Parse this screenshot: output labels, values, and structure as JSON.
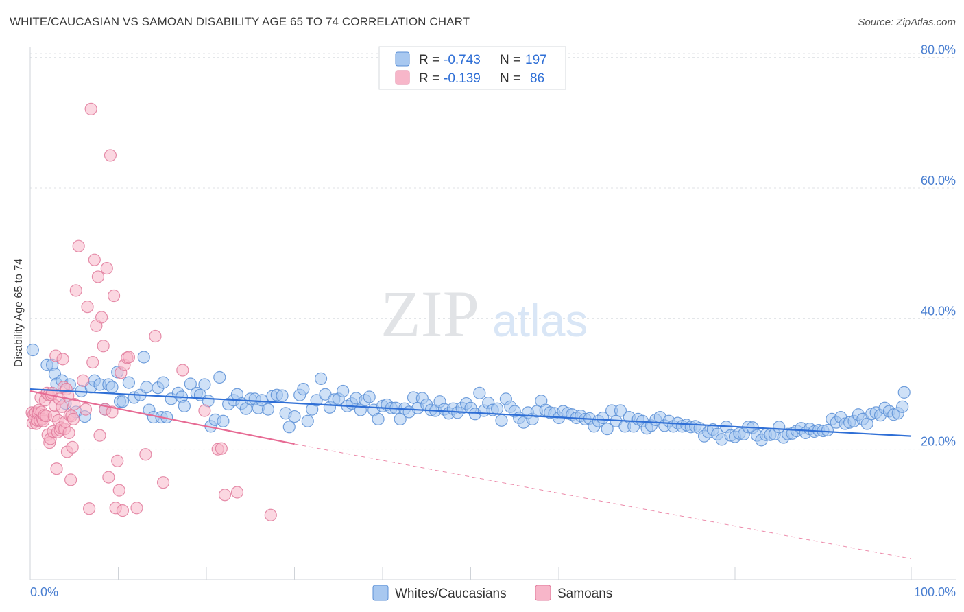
{
  "title": "WHITE/CAUCASIAN VS SAMOAN DISABILITY AGE 65 TO 74 CORRELATION CHART",
  "source": "Source: ZipAtlas.com",
  "watermark": {
    "zip": "ZIP",
    "atlas": "atlas"
  },
  "legend": {
    "rows": [
      {
        "r_label": "R =",
        "r_value": "-0.743",
        "n_label": "N =",
        "n_value": "197",
        "color": "#a8c8f0",
        "stroke": "#5b8fd6"
      },
      {
        "r_label": "R =",
        "r_value": "-0.139",
        "n_label": "N =",
        "n_value": "86",
        "color": "#f7b6c9",
        "stroke": "#e07a9b"
      }
    ]
  },
  "chart_data": {
    "type": "scatter",
    "title": "WHITE/CAUCASIAN VS SAMOAN DISABILITY AGE 65 TO 74 CORRELATION CHART",
    "xlabel": "",
    "ylabel": "Disability Age 65 to 74",
    "xlim": [
      0,
      100
    ],
    "ylim": [
      0,
      86
    ],
    "x_tick_labels": [
      "0.0%",
      "100.0%"
    ],
    "y_ticks": [
      20,
      40,
      60,
      80
    ],
    "y_tick_labels": [
      "20.0%",
      "40.0%",
      "60.0%",
      "80.0%"
    ],
    "grid": true,
    "legend_position": "top-center",
    "series": [
      {
        "name": "Whites/Caucasians",
        "color": "#a8c8f0",
        "stroke": "#5b8fd6",
        "trend": {
          "x": [
            0,
            100
          ],
          "y": [
            29.2,
            22.0
          ],
          "color": "#2f6fd6"
        },
        "points": [
          [
            0.3,
            35.2
          ],
          [
            1.9,
            32.9
          ],
          [
            2.5,
            32.9
          ],
          [
            2.8,
            31.5
          ],
          [
            3.0,
            30.0
          ],
          [
            3.6,
            30.5
          ],
          [
            4.0,
            27.0
          ],
          [
            4.5,
            29.9
          ],
          [
            5.2,
            25.7
          ],
          [
            5.8,
            28.9
          ],
          [
            6.2,
            25.0
          ],
          [
            6.9,
            29.5
          ],
          [
            7.3,
            30.5
          ],
          [
            7.9,
            29.9
          ],
          [
            8.5,
            26.1
          ],
          [
            8.9,
            29.9
          ],
          [
            9.3,
            29.5
          ],
          [
            9.9,
            31.8
          ],
          [
            10.2,
            27.3
          ],
          [
            10.5,
            27.3
          ],
          [
            11.2,
            30.2
          ],
          [
            11.8,
            27.9
          ],
          [
            12.5,
            28.3
          ],
          [
            12.9,
            34.1
          ],
          [
            13.2,
            29.5
          ],
          [
            13.5,
            26.0
          ],
          [
            14.0,
            24.9
          ],
          [
            14.5,
            29.4
          ],
          [
            14.9,
            24.9
          ],
          [
            15.1,
            30.2
          ],
          [
            15.5,
            24.9
          ],
          [
            16.0,
            27.7
          ],
          [
            16.8,
            28.6
          ],
          [
            17.2,
            28.0
          ],
          [
            17.5,
            26.6
          ],
          [
            18.2,
            30.0
          ],
          [
            18.9,
            28.6
          ],
          [
            19.3,
            28.3
          ],
          [
            19.8,
            29.9
          ],
          [
            20.2,
            27.4
          ],
          [
            20.5,
            23.5
          ],
          [
            21.0,
            24.5
          ],
          [
            21.5,
            31.0
          ],
          [
            21.9,
            24.3
          ],
          [
            22.5,
            26.9
          ],
          [
            23.1,
            27.5
          ],
          [
            23.5,
            28.4
          ],
          [
            24.0,
            27.0
          ],
          [
            24.5,
            26.2
          ],
          [
            25.0,
            27.7
          ],
          [
            25.5,
            27.7
          ],
          [
            25.9,
            26.3
          ],
          [
            26.3,
            27.5
          ],
          [
            27.0,
            26.1
          ],
          [
            27.5,
            28.1
          ],
          [
            28.0,
            28.3
          ],
          [
            28.6,
            28.2
          ],
          [
            29.0,
            25.5
          ],
          [
            29.4,
            23.4
          ],
          [
            30.0,
            25.0
          ],
          [
            30.6,
            28.3
          ],
          [
            31.0,
            29.2
          ],
          [
            31.5,
            24.3
          ],
          [
            32.0,
            26.1
          ],
          [
            32.5,
            27.5
          ],
          [
            33.0,
            30.8
          ],
          [
            33.5,
            28.4
          ],
          [
            34.0,
            26.4
          ],
          [
            34.5,
            27.6
          ],
          [
            35.0,
            27.7
          ],
          [
            35.5,
            28.9
          ],
          [
            36.0,
            26.6
          ],
          [
            36.5,
            27.0
          ],
          [
            37.0,
            27.8
          ],
          [
            37.5,
            26.0
          ],
          [
            38.0,
            27.5
          ],
          [
            38.5,
            28.0
          ],
          [
            39.0,
            26.0
          ],
          [
            39.5,
            24.6
          ],
          [
            40.0,
            26.6
          ],
          [
            40.5,
            26.8
          ],
          [
            41.0,
            26.3
          ],
          [
            41.5,
            26.3
          ],
          [
            42.0,
            24.6
          ],
          [
            42.5,
            26.2
          ],
          [
            43.0,
            25.7
          ],
          [
            43.5,
            27.9
          ],
          [
            44.0,
            26.3
          ],
          [
            44.5,
            27.8
          ],
          [
            45.0,
            26.8
          ],
          [
            45.5,
            26.0
          ],
          [
            46.0,
            25.9
          ],
          [
            46.5,
            27.3
          ],
          [
            47.0,
            26.1
          ],
          [
            47.5,
            25.5
          ],
          [
            48.0,
            26.2
          ],
          [
            48.5,
            25.6
          ],
          [
            49.0,
            26.3
          ],
          [
            49.5,
            27.0
          ],
          [
            50.0,
            26.3
          ],
          [
            50.5,
            25.4
          ],
          [
            51.0,
            28.6
          ],
          [
            51.5,
            25.9
          ],
          [
            52.0,
            27.1
          ],
          [
            52.5,
            26.0
          ],
          [
            53.0,
            26.2
          ],
          [
            53.5,
            24.4
          ],
          [
            54.0,
            27.7
          ],
          [
            54.5,
            26.5
          ],
          [
            55.0,
            25.8
          ],
          [
            55.5,
            24.8
          ],
          [
            56.0,
            24.1
          ],
          [
            56.5,
            25.6
          ],
          [
            57.0,
            24.6
          ],
          [
            57.5,
            25.8
          ],
          [
            58.0,
            27.4
          ],
          [
            58.5,
            26.0
          ],
          [
            59.0,
            25.6
          ],
          [
            59.5,
            25.5
          ],
          [
            60.0,
            24.8
          ],
          [
            60.5,
            25.8
          ],
          [
            61.0,
            25.5
          ],
          [
            61.5,
            25.3
          ],
          [
            62.0,
            24.8
          ],
          [
            62.5,
            25.1
          ],
          [
            63.0,
            24.6
          ],
          [
            63.5,
            24.7
          ],
          [
            64.0,
            23.5
          ],
          [
            64.5,
            24.3
          ],
          [
            65.0,
            24.8
          ],
          [
            65.5,
            23.1
          ],
          [
            66.0,
            25.9
          ],
          [
            66.5,
            24.3
          ],
          [
            67.0,
            25.9
          ],
          [
            67.5,
            23.5
          ],
          [
            68.0,
            24.9
          ],
          [
            68.5,
            23.5
          ],
          [
            69.0,
            24.6
          ],
          [
            69.5,
            24.3
          ],
          [
            70.0,
            23.2
          ],
          [
            70.5,
            23.6
          ],
          [
            71.0,
            24.5
          ],
          [
            71.5,
            24.9
          ],
          [
            72.0,
            23.6
          ],
          [
            72.5,
            24.3
          ],
          [
            73.0,
            23.5
          ],
          [
            73.5,
            24.0
          ],
          [
            74.0,
            23.5
          ],
          [
            74.5,
            23.7
          ],
          [
            75.0,
            23.4
          ],
          [
            75.5,
            23.5
          ],
          [
            76.0,
            23.2
          ],
          [
            76.5,
            22.0
          ],
          [
            77.0,
            22.6
          ],
          [
            77.5,
            23.0
          ],
          [
            78.0,
            22.3
          ],
          [
            78.5,
            21.5
          ],
          [
            79.0,
            23.4
          ],
          [
            79.5,
            22.1
          ],
          [
            80.0,
            21.9
          ],
          [
            80.5,
            22.4
          ],
          [
            81.0,
            22.3
          ],
          [
            81.5,
            23.4
          ],
          [
            82.0,
            23.3
          ],
          [
            82.5,
            22.1
          ],
          [
            83.0,
            21.4
          ],
          [
            83.5,
            22.2
          ],
          [
            84.0,
            22.2
          ],
          [
            84.5,
            22.3
          ],
          [
            85.0,
            23.4
          ],
          [
            85.5,
            21.8
          ],
          [
            86.0,
            22.3
          ],
          [
            86.5,
            22.4
          ],
          [
            87.0,
            22.8
          ],
          [
            87.5,
            23.2
          ],
          [
            88.0,
            22.5
          ],
          [
            88.5,
            23.1
          ],
          [
            89.0,
            22.7
          ],
          [
            89.5,
            22.9
          ],
          [
            90.0,
            22.8
          ],
          [
            90.5,
            22.9
          ],
          [
            91.0,
            24.6
          ],
          [
            91.5,
            24.1
          ],
          [
            92.0,
            24.9
          ],
          [
            92.5,
            23.9
          ],
          [
            93.0,
            24.1
          ],
          [
            93.5,
            24.3
          ],
          [
            94.0,
            25.3
          ],
          [
            94.5,
            24.6
          ],
          [
            95.0,
            23.9
          ],
          [
            95.5,
            25.4
          ],
          [
            96.0,
            25.6
          ],
          [
            96.5,
            25.2
          ],
          [
            97.0,
            26.3
          ],
          [
            97.5,
            25.8
          ],
          [
            98.0,
            25.3
          ],
          [
            98.5,
            25.5
          ],
          [
            99.0,
            26.5
          ],
          [
            99.2,
            28.7
          ]
        ]
      },
      {
        "name": "Samoans",
        "color": "#f7b6c9",
        "stroke": "#e07a9b",
        "trend": {
          "x": [
            0,
            30
          ],
          "y": [
            28.9,
            20.8
          ],
          "color": "#e76b94",
          "dashed_to": [
            100,
            3.2
          ]
        },
        "points": [
          [
            0.2,
            25.6
          ],
          [
            0.3,
            24.0
          ],
          [
            0.4,
            25.3
          ],
          [
            0.5,
            24.6
          ],
          [
            0.6,
            25.6
          ],
          [
            0.7,
            23.9
          ],
          [
            0.8,
            24.4
          ],
          [
            0.9,
            25.5
          ],
          [
            1.0,
            26.0
          ],
          [
            1.1,
            24.4
          ],
          [
            1.2,
            27.9
          ],
          [
            1.3,
            25.7
          ],
          [
            1.4,
            24.6
          ],
          [
            1.5,
            24.3
          ],
          [
            1.6,
            25.2
          ],
          [
            1.7,
            27.5
          ],
          [
            1.8,
            25.1
          ],
          [
            1.9,
            28.6
          ],
          [
            2.0,
            22.2
          ],
          [
            2.1,
            28.3
          ],
          [
            2.2,
            21.0
          ],
          [
            2.3,
            21.6
          ],
          [
            2.4,
            28.3
          ],
          [
            2.5,
            28.6
          ],
          [
            2.6,
            22.7
          ],
          [
            2.7,
            25.1
          ],
          [
            2.8,
            26.7
          ],
          [
            2.9,
            34.3
          ],
          [
            3.0,
            17.0
          ],
          [
            3.1,
            22.6
          ],
          [
            3.2,
            24.4
          ],
          [
            3.3,
            27.7
          ],
          [
            3.4,
            22.9
          ],
          [
            3.5,
            23.3
          ],
          [
            3.6,
            26.5
          ],
          [
            3.7,
            33.8
          ],
          [
            3.8,
            29.5
          ],
          [
            3.9,
            23.1
          ],
          [
            4.0,
            24.2
          ],
          [
            4.1,
            29.2
          ],
          [
            4.2,
            19.6
          ],
          [
            4.3,
            28.2
          ],
          [
            4.4,
            22.5
          ],
          [
            4.5,
            25.2
          ],
          [
            4.6,
            15.3
          ],
          [
            4.7,
            25.1
          ],
          [
            4.8,
            20.3
          ],
          [
            4.9,
            24.6
          ],
          [
            5.0,
            26.9
          ],
          [
            5.2,
            44.3
          ],
          [
            5.5,
            51.1
          ],
          [
            6.0,
            30.5
          ],
          [
            6.3,
            26.1
          ],
          [
            6.5,
            41.8
          ],
          [
            6.7,
            10.9
          ],
          [
            6.9,
            72.1
          ],
          [
            7.1,
            33.3
          ],
          [
            7.3,
            49.0
          ],
          [
            7.5,
            38.9
          ],
          [
            7.7,
            46.4
          ],
          [
            7.9,
            22.1
          ],
          [
            8.1,
            40.2
          ],
          [
            8.3,
            35.8
          ],
          [
            8.5,
            26.1
          ],
          [
            8.7,
            47.7
          ],
          [
            8.9,
            15.7
          ],
          [
            9.1,
            65.0
          ],
          [
            9.3,
            25.7
          ],
          [
            9.5,
            43.5
          ],
          [
            9.7,
            11.0
          ],
          [
            9.9,
            18.2
          ],
          [
            10.1,
            13.7
          ],
          [
            10.3,
            31.7
          ],
          [
            10.5,
            10.6
          ],
          [
            10.7,
            32.9
          ],
          [
            11.0,
            34.0
          ],
          [
            11.2,
            34.1
          ],
          [
            12.1,
            11.0
          ],
          [
            13.1,
            19.2
          ],
          [
            14.2,
            37.3
          ],
          [
            15.1,
            14.9
          ],
          [
            17.3,
            32.1
          ],
          [
            19.8,
            25.9
          ],
          [
            21.3,
            20.0
          ],
          [
            21.7,
            20.1
          ],
          [
            22.1,
            13.0
          ],
          [
            23.5,
            13.4
          ],
          [
            27.3,
            9.9
          ]
        ]
      }
    ]
  },
  "bottom_legend": [
    {
      "label": "Whites/Caucasians",
      "color": "#a8c8f0",
      "stroke": "#5b8fd6"
    },
    {
      "label": "Samoans",
      "color": "#f7b6c9",
      "stroke": "#e07a9b"
    }
  ]
}
